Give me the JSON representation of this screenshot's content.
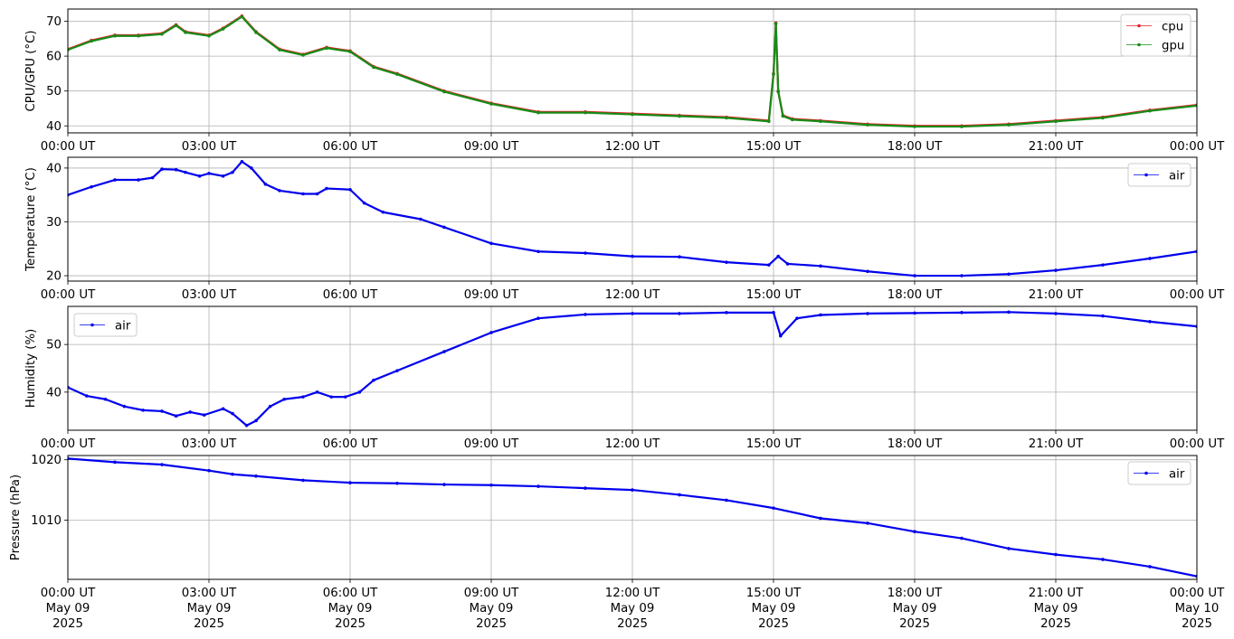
{
  "chart_data": [
    {
      "type": "line",
      "ylabel": "CPU/GPU (°C)",
      "ylim": [
        38,
        73.5
      ],
      "yticks": [
        40,
        50,
        60,
        70
      ],
      "x_range": [
        "2025-05-09T00:00Z",
        "2025-05-10T00:00Z"
      ],
      "x_tick_labels": [
        "00:00 UT",
        "03:00 UT",
        "06:00 UT",
        "09:00 UT",
        "12:00 UT",
        "15:00 UT",
        "18:00 UT",
        "21:00 UT",
        "00:00 UT"
      ],
      "grid": true,
      "legend_position": "upper right",
      "series": [
        {
          "name": "cpu",
          "color": "#e8202a",
          "x_hours": [
            0,
            0.5,
            1,
            1.5,
            2,
            2.3,
            2.5,
            3,
            3.3,
            3.7,
            4,
            4.5,
            5,
            5.5,
            6,
            6.5,
            7,
            8,
            9,
            10,
            11,
            12,
            13,
            14,
            14.9,
            15.0,
            15.05,
            15.1,
            15.2,
            15.4,
            16,
            17,
            18,
            19,
            20,
            21,
            22,
            23,
            24
          ],
          "values": [
            62,
            64.5,
            66,
            66,
            66.5,
            69,
            67,
            66,
            68,
            71.5,
            67,
            62,
            60.5,
            62.5,
            61.5,
            57,
            55,
            50,
            46.5,
            44,
            44,
            43.5,
            43,
            42.5,
            41.5,
            55,
            69.5,
            50,
            43,
            42,
            41.5,
            40.5,
            40,
            40,
            40.5,
            41.5,
            42.5,
            44.5,
            46
          ]
        },
        {
          "name": "gpu",
          "color": "#168c16",
          "x_hours": [
            0,
            0.5,
            1,
            1.5,
            2,
            2.3,
            2.5,
            3,
            3.3,
            3.7,
            4,
            4.5,
            5,
            5.5,
            6,
            6.5,
            7,
            8,
            9,
            10,
            11,
            12,
            13,
            14,
            14.9,
            15.0,
            15.05,
            15.1,
            15.2,
            15.4,
            16,
            17,
            18,
            19,
            20,
            21,
            22,
            23,
            24
          ],
          "values": [
            61.8,
            64.3,
            65.8,
            65.8,
            66.3,
            68.8,
            66.8,
            65.8,
            67.8,
            71.3,
            66.8,
            61.8,
            60.3,
            62.3,
            61.3,
            56.8,
            54.8,
            49.8,
            46.3,
            43.8,
            43.8,
            43.3,
            42.8,
            42.3,
            41.3,
            54.8,
            69.3,
            49.8,
            42.8,
            41.8,
            41.3,
            40.3,
            39.8,
            39.8,
            40.3,
            41.3,
            42.3,
            44.3,
            45.8
          ]
        }
      ]
    },
    {
      "type": "line",
      "ylabel": "Temperature (°C)",
      "ylim": [
        19,
        42
      ],
      "yticks": [
        20,
        30,
        40
      ],
      "x_range": [
        "2025-05-09T00:00Z",
        "2025-05-10T00:00Z"
      ],
      "x_tick_labels": [
        "00:00 UT",
        "03:00 UT",
        "06:00 UT",
        "09:00 UT",
        "12:00 UT",
        "15:00 UT",
        "18:00 UT",
        "21:00 UT",
        "00:00 UT"
      ],
      "grid": true,
      "legend_position": "upper right",
      "series": [
        {
          "name": "air",
          "color": "#0000ee",
          "x_hours": [
            0,
            0.5,
            1,
            1.5,
            1.8,
            2.0,
            2.3,
            2.5,
            2.8,
            3.0,
            3.3,
            3.5,
            3.7,
            3.9,
            4.2,
            4.5,
            5.0,
            5.3,
            5.5,
            6.0,
            6.3,
            6.7,
            7.5,
            8.0,
            9.0,
            10.0,
            11.0,
            12.0,
            13.0,
            14.0,
            14.9,
            15.1,
            15.3,
            16.0,
            17.0,
            18.0,
            19.0,
            20.0,
            21.0,
            22.0,
            23.0,
            24.0
          ],
          "values": [
            35,
            36.5,
            37.8,
            37.8,
            38.2,
            39.8,
            39.7,
            39.2,
            38.5,
            39.0,
            38.5,
            39.2,
            41.2,
            40.0,
            37.0,
            35.8,
            35.2,
            35.2,
            36.2,
            36.0,
            33.5,
            31.8,
            30.5,
            29.0,
            26.0,
            24.5,
            24.2,
            23.6,
            23.5,
            22.5,
            22.0,
            23.6,
            22.2,
            21.8,
            20.8,
            20.0,
            20.0,
            20.3,
            21.0,
            22.0,
            23.2,
            24.5
          ]
        }
      ]
    },
    {
      "type": "line",
      "ylabel": "Humidity (%)",
      "ylim": [
        32,
        58
      ],
      "yticks": [
        40,
        50
      ],
      "x_range": [
        "2025-05-09T00:00Z",
        "2025-05-10T00:00Z"
      ],
      "x_tick_labels": [
        "00:00 UT",
        "03:00 UT",
        "06:00 UT",
        "09:00 UT",
        "12:00 UT",
        "15:00 UT",
        "18:00 UT",
        "21:00 UT",
        "00:00 UT"
      ],
      "grid": true,
      "legend_position": "upper left",
      "series": [
        {
          "name": "air",
          "color": "#0000ee",
          "x_hours": [
            0,
            0.4,
            0.8,
            1.2,
            1.6,
            2.0,
            2.3,
            2.6,
            2.9,
            3.3,
            3.5,
            3.8,
            4.0,
            4.3,
            4.6,
            5.0,
            5.3,
            5.6,
            5.9,
            6.2,
            6.5,
            7.0,
            8.0,
            9.0,
            10.0,
            11.0,
            12.0,
            13.0,
            14.0,
            15.0,
            15.15,
            15.5,
            16.0,
            17.0,
            18.0,
            19.0,
            20.0,
            21.0,
            22.0,
            23.0,
            24.0
          ],
          "values": [
            41,
            39.2,
            38.5,
            37.0,
            36.2,
            36.0,
            35.0,
            35.8,
            35.2,
            36.5,
            35.5,
            33.0,
            34.0,
            37.0,
            38.5,
            39.0,
            40.0,
            39.0,
            39.0,
            40.0,
            42.5,
            44.5,
            48.5,
            52.5,
            55.5,
            56.3,
            56.5,
            56.5,
            56.7,
            56.7,
            51.8,
            55.5,
            56.2,
            56.5,
            56.6,
            56.7,
            56.8,
            56.5,
            56.0,
            54.8,
            53.8
          ]
        }
      ]
    },
    {
      "type": "line",
      "ylabel": "Pressure (hPa)",
      "ylim": [
        1000.2,
        1020.7
      ],
      "yticks": [
        1010,
        1020
      ],
      "x_range": [
        "2025-05-09T00:00Z",
        "2025-05-10T00:00Z"
      ],
      "x_tick_labels": [
        "00:00 UT",
        "03:00 UT",
        "06:00 UT",
        "09:00 UT",
        "12:00 UT",
        "15:00 UT",
        "18:00 UT",
        "21:00 UT",
        "00:00 UT"
      ],
      "x_tick_dates": [
        "May 09",
        "May 09",
        "May 09",
        "May 09",
        "May 09",
        "May 09",
        "May 09",
        "May 09",
        "May 10"
      ],
      "x_tick_years": [
        "2025",
        "2025",
        "2025",
        "2025",
        "2025",
        "2025",
        "2025",
        "2025",
        "2025"
      ],
      "grid": true,
      "legend_position": "upper right",
      "series": [
        {
          "name": "air",
          "color": "#0000ee",
          "x_hours": [
            0,
            1,
            2,
            3,
            3.5,
            4,
            5,
            6,
            7,
            8,
            9,
            10,
            11,
            12,
            13,
            14,
            15,
            16,
            17,
            18,
            19,
            20,
            21,
            22,
            23,
            24
          ],
          "values": [
            1020.2,
            1019.6,
            1019.2,
            1018.2,
            1017.6,
            1017.3,
            1016.6,
            1016.2,
            1016.1,
            1015.9,
            1015.8,
            1015.6,
            1015.3,
            1015.0,
            1014.2,
            1013.3,
            1012.0,
            1010.3,
            1009.5,
            1008.1,
            1007.0,
            1005.3,
            1004.3,
            1003.5,
            1002.3,
            1000.7
          ]
        }
      ]
    }
  ]
}
